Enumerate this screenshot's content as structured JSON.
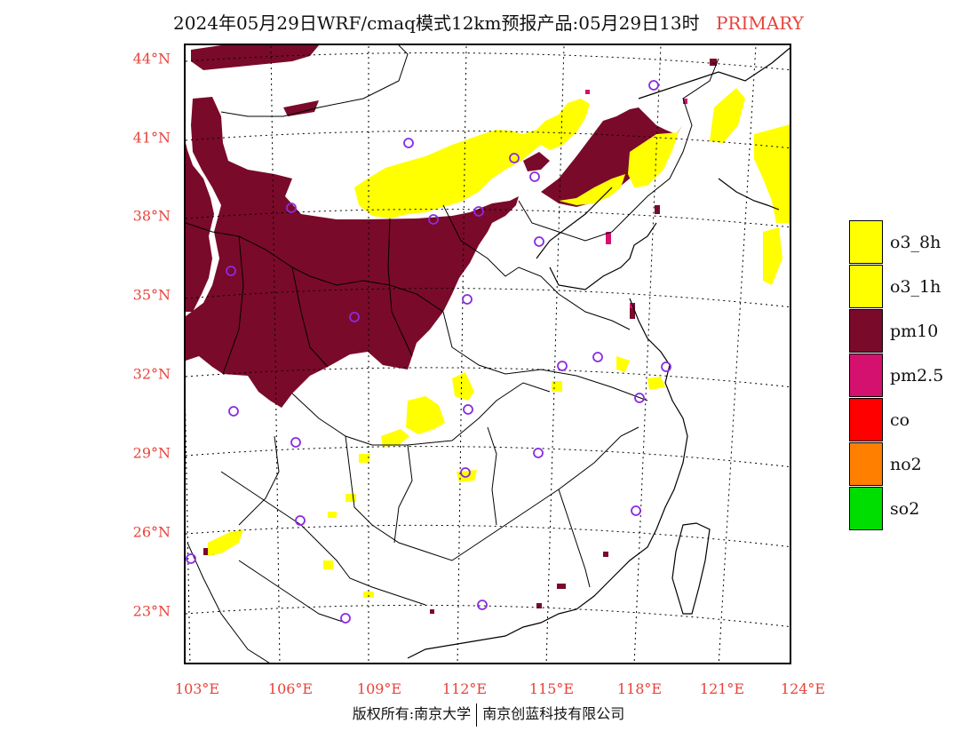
{
  "header": {
    "title": "2024年05月29日WRF/cmaq模式12km预报产品:05月29日13时",
    "tag": "PRIMARY"
  },
  "map": {
    "lat_labels": [
      "44°N",
      "41°N",
      "38°N",
      "35°N",
      "32°N",
      "29°N",
      "26°N",
      "23°N"
    ],
    "lon_labels": [
      "103°E",
      "106°E",
      "109°E",
      "112°E",
      "115°E",
      "118°E",
      "121°E",
      "124°E"
    ]
  },
  "legend": {
    "items": [
      {
        "label": "o3_8h",
        "color": "#ffff00"
      },
      {
        "label": "o3_1h",
        "color": "#ffff00"
      },
      {
        "label": "pm10",
        "color": "#7a0a2a"
      },
      {
        "label": "pm2.5",
        "color": "#d4116e"
      },
      {
        "label": "co",
        "color": "#ff0000"
      },
      {
        "label": "no2",
        "color": "#ff7f00"
      },
      {
        "label": "so2",
        "color": "#00dd00"
      }
    ]
  },
  "colors": {
    "pm10": "#7a0a2a",
    "o3": "#ffff00",
    "station": "#8a2be2",
    "axis_label": "#e8423a"
  },
  "footer": {
    "copyright_left": "版权所有:南京大学",
    "copyright_right": "南京创蓝科技有限公司"
  }
}
